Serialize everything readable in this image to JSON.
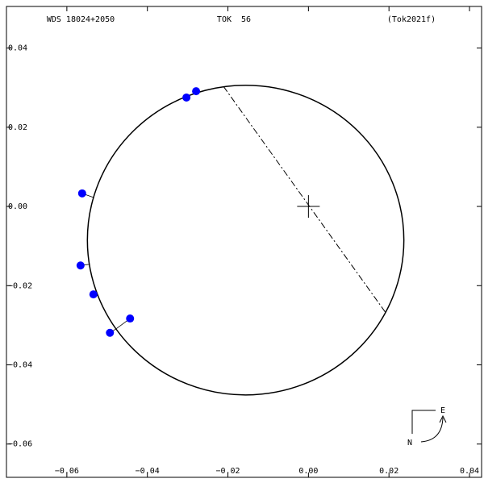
{
  "chart_data": {
    "type": "scatter",
    "title": "WDS 18024+2050",
    "subtitle": "TOK  56",
    "reference": "(Tok2021f)",
    "x": [
      -0.0562,
      -0.0566,
      -0.0534,
      -0.0493,
      -0.0443,
      -0.0303,
      -0.0279
    ],
    "series": [
      {
        "color": "#0000ff",
        "values": [
          0.0033,
          -0.0149,
          -0.0222,
          -0.0319,
          -0.0283,
          0.0275,
          0.0291
        ]
      }
    ],
    "orbit": {
      "cx": -0.0156,
      "cy": -0.0085,
      "rx": 0.0393,
      "ry": 0.0391,
      "color": "#000000"
    },
    "node_line": {
      "x": [
        -0.0211,
        0.0191
      ],
      "y": [
        0.0303,
        -0.0267
      ]
    },
    "compass": {
      "east": "E",
      "north": "N"
    },
    "xlim": [
      -0.075,
      0.043
    ],
    "ylim": [
      -0.0684,
      0.0505
    ],
    "xticks": [
      {
        "value": -0.06,
        "label": "−0.06"
      },
      {
        "value": -0.04,
        "label": "−0.04"
      },
      {
        "value": -0.02,
        "label": "−0.02"
      },
      {
        "value": 0,
        "label": "0.00"
      },
      0.02,
      0.04
    ],
    "yticks": [
      0.04,
      0.02,
      {
        "value": 0,
        "label": "0.00"
      },
      {
        "value": -0.02,
        "label": "−0.02"
      },
      {
        "value": -0.04,
        "label": "−0.04"
      },
      {
        "value": -0.06,
        "label": "−0.06"
      }
    ]
  }
}
